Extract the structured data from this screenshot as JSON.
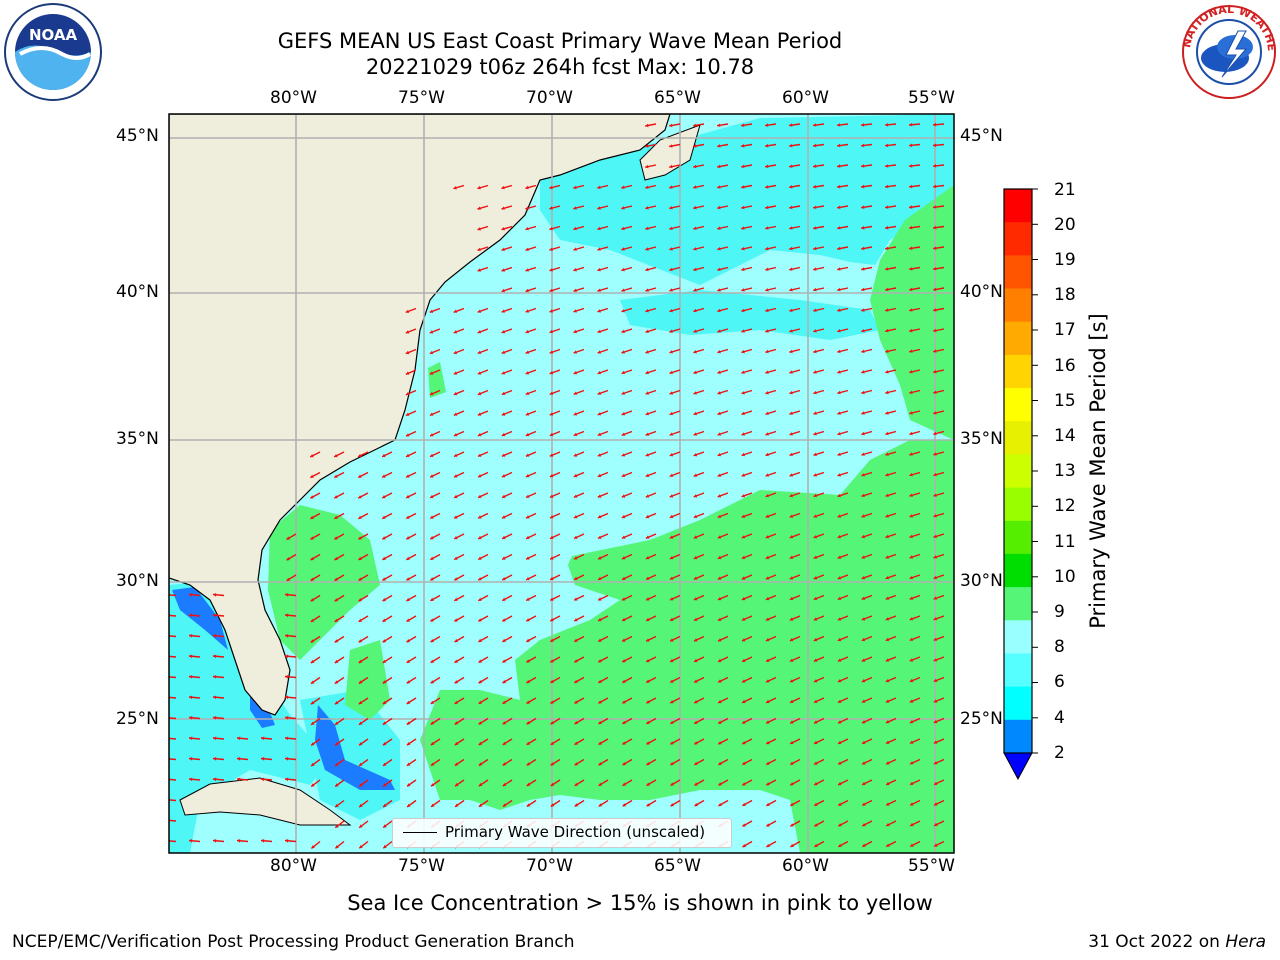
{
  "header": {
    "title_line1": "GEFS MEAN US East Coast Primary Wave Mean Period",
    "title_line2": "20221029 t06z 264h fcst   Max: 10.78"
  },
  "logos": {
    "left": {
      "name": "NOAA logo",
      "text": "NOAA"
    },
    "right": {
      "name": "National Weather Service logo",
      "text": "NATIONAL WEATHER SERVICE"
    }
  },
  "axes": {
    "lon_labels": [
      "80°W",
      "75°W",
      "70°W",
      "65°W",
      "60°W",
      "55°W"
    ],
    "lat_labels": [
      "45°N",
      "40°N",
      "35°N",
      "30°N",
      "25°N"
    ]
  },
  "colorbar": {
    "label": "Primary Wave Mean Period [s]",
    "ticks": [
      "21",
      "20",
      "19",
      "18",
      "17",
      "16",
      "15",
      "14",
      "13",
      "12",
      "11",
      "10",
      "9",
      "8",
      "6",
      "4",
      "2"
    ],
    "colors": [
      "#ff0000",
      "#ff2a00",
      "#ff5500",
      "#ff8000",
      "#ffaa00",
      "#ffd400",
      "#ffff00",
      "#e6f000",
      "#ccff00",
      "#99ff00",
      "#55ee00",
      "#00dd00",
      "#55f577",
      "#99ffff",
      "#55ffff",
      "#00ffff",
      "#0088ff",
      "#0000ff"
    ]
  },
  "map": {
    "legend_text": "Primary Wave Direction (unscaled)",
    "colors": {
      "land": "#efeddc",
      "cyan_light": "#9ffefe",
      "cyan": "#4ff6f6",
      "green": "#55f577",
      "blue": "#1c7cff",
      "arrow": "#ee1111",
      "grid": "#b0b0b0"
    }
  },
  "notes": {
    "sea_ice": "Sea Ice Concentration > 15% is shown in pink to yellow"
  },
  "footer": {
    "left": "NCEP/EMC/Verification Post Processing Product Generation Branch",
    "right_date": "31 Oct 2022 on ",
    "right_host": "Hera"
  }
}
